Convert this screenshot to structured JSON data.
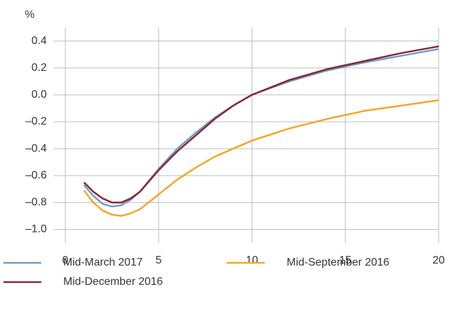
{
  "chart_data": {
    "type": "line",
    "y_unit": "%",
    "x": [
      1,
      1.5,
      2,
      2.5,
      3,
      3.5,
      4,
      5,
      6,
      7,
      8,
      9,
      10,
      12,
      14,
      16,
      18,
      20
    ],
    "series": [
      {
        "name": "Mid-March 2017",
        "color": "#6b9bc6",
        "values": [
          -0.67,
          -0.75,
          -0.81,
          -0.83,
          -0.82,
          -0.78,
          -0.72,
          -0.55,
          -0.4,
          -0.28,
          -0.17,
          -0.08,
          0.0,
          0.1,
          0.18,
          0.24,
          0.29,
          0.34
        ]
      },
      {
        "name": "Mid-September 2016",
        "color": "#f5a623",
        "values": [
          -0.71,
          -0.8,
          -0.86,
          -0.89,
          -0.9,
          -0.88,
          -0.85,
          -0.74,
          -0.63,
          -0.54,
          -0.46,
          -0.4,
          -0.34,
          -0.25,
          -0.18,
          -0.12,
          -0.08,
          -0.04
        ]
      },
      {
        "name": "Mid-December 2016",
        "color": "#8b2332",
        "values": [
          -0.65,
          -0.72,
          -0.77,
          -0.8,
          -0.8,
          -0.77,
          -0.72,
          -0.56,
          -0.42,
          -0.3,
          -0.18,
          -0.08,
          0.0,
          0.11,
          0.19,
          0.25,
          0.31,
          0.36
        ]
      }
    ],
    "xlim": [
      0,
      20
    ],
    "xticks": [
      0,
      5,
      10,
      15,
      20
    ],
    "ylim": [
      -1.1,
      0.5
    ],
    "yticks": [
      0.4,
      0.2,
      {
        "value": 0,
        "label": "0.0"
      },
      {
        "value": -0.2,
        "label": "–0.2"
      },
      {
        "value": -0.4,
        "label": "–0.4"
      },
      {
        "value": -0.6,
        "label": "–0.6"
      },
      {
        "value": -0.8,
        "label": "–0.8"
      },
      {
        "value": -1.0,
        "label": "–1.0"
      }
    ],
    "grid": true
  }
}
